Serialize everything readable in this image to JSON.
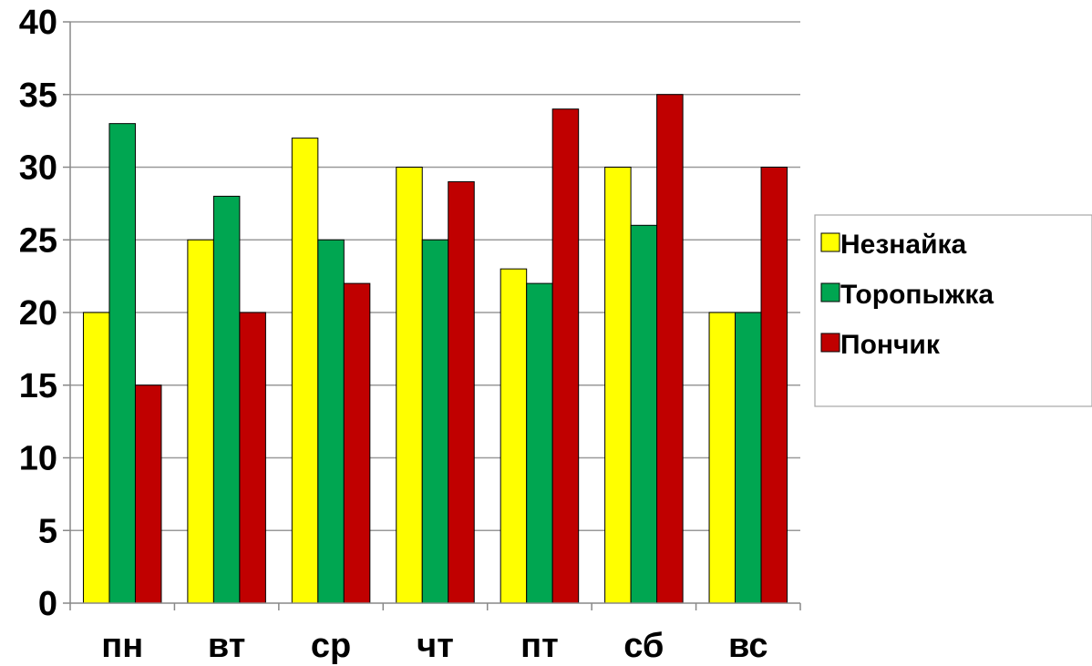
{
  "chart_data": {
    "type": "bar",
    "categories": [
      "пн",
      "вт",
      "ср",
      "чт",
      "пт",
      "сб",
      "вс"
    ],
    "series": [
      {
        "name": "Незнайка",
        "color": "#FFFF00",
        "values": [
          20,
          25,
          32,
          30,
          23,
          30,
          20
        ]
      },
      {
        "name": "Торопыжка",
        "color": "#00A651",
        "values": [
          33,
          28,
          25,
          25,
          22,
          26,
          20
        ]
      },
      {
        "name": "Пончик",
        "color": "#C00000",
        "values": [
          15,
          20,
          22,
          29,
          34,
          35,
          30
        ]
      }
    ],
    "ylim": [
      0,
      40
    ],
    "yticks": [
      0,
      5,
      10,
      15,
      20,
      25,
      30,
      35,
      40
    ],
    "grid": true,
    "legend_position": "right",
    "title": "",
    "xlabel": "",
    "ylabel": ""
  }
}
